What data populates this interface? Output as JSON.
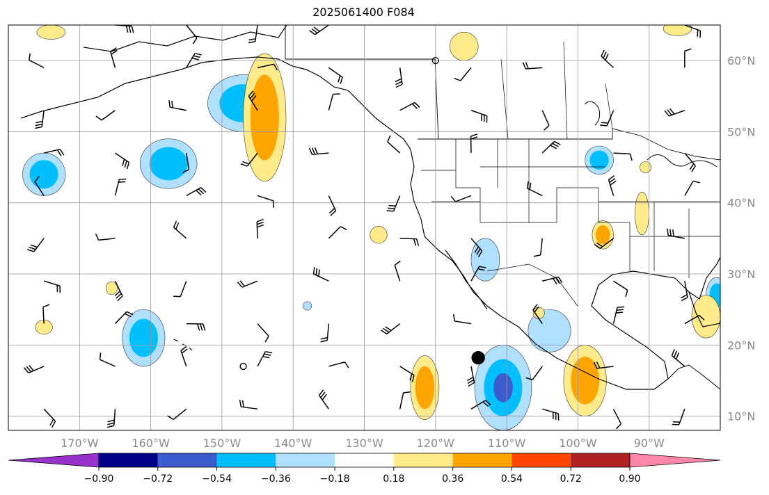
{
  "title": "2025061400 F084",
  "map": {
    "lon_range": [
      -180,
      -80
    ],
    "lat_range": [
      8,
      65
    ],
    "lon_ticks": [
      {
        "value": -170,
        "label": "170°W"
      },
      {
        "value": -160,
        "label": "160°W"
      },
      {
        "value": -150,
        "label": "150°W"
      },
      {
        "value": -140,
        "label": "140°W"
      },
      {
        "value": -130,
        "label": "130°W"
      },
      {
        "value": -120,
        "label": "120°W"
      },
      {
        "value": -110,
        "label": "110°W"
      },
      {
        "value": -100,
        "label": "100°W"
      },
      {
        "value": -90,
        "label": "90°W"
      }
    ],
    "lat_ticks": [
      {
        "value": 10,
        "label": "10°N"
      },
      {
        "value": 20,
        "label": "20°N"
      },
      {
        "value": 30,
        "label": "30°N"
      },
      {
        "value": 40,
        "label": "40°N"
      },
      {
        "value": 50,
        "label": "50°N"
      },
      {
        "value": 60,
        "label": "60°N"
      }
    ],
    "grid": true,
    "anomalies": [
      {
        "lon": -147,
        "lat": 54,
        "rx": 5,
        "ry": 4,
        "level": -0.45
      },
      {
        "lon": -157.5,
        "lat": 45.5,
        "rx": 4,
        "ry": 3.5,
        "level": -0.45
      },
      {
        "lon": -175,
        "lat": 44,
        "rx": 3,
        "ry": 3,
        "level": -0.45
      },
      {
        "lon": -161,
        "lat": 21,
        "rx": 3,
        "ry": 4,
        "level": -0.45
      },
      {
        "lon": -110.5,
        "lat": 14,
        "rx": 4,
        "ry": 6,
        "level": -0.6
      },
      {
        "lon": -104,
        "lat": 22,
        "rx": 3,
        "ry": 3,
        "level": -0.25
      },
      {
        "lon": -97,
        "lat": 46,
        "rx": 2,
        "ry": 2,
        "level": -0.4
      },
      {
        "lon": -80.5,
        "lat": 27,
        "rx": 1.5,
        "ry": 2.5,
        "level": -0.4
      },
      {
        "lon": -113,
        "lat": 32,
        "rx": 2,
        "ry": 3,
        "level": -0.25
      },
      {
        "lon": -138,
        "lat": 25.5,
        "rx": 0.6,
        "ry": 0.6,
        "level": -0.25
      },
      {
        "lon": -144,
        "lat": 52,
        "rx": 3,
        "ry": 9,
        "level": 0.45
      },
      {
        "lon": -121.5,
        "lat": 14,
        "rx": 2,
        "ry": 4.5,
        "level": 0.45
      },
      {
        "lon": -99,
        "lat": 15,
        "rx": 3,
        "ry": 5,
        "level": 0.45
      },
      {
        "lon": -96.5,
        "lat": 35.5,
        "rx": 1.5,
        "ry": 2,
        "level": 0.4
      },
      {
        "lon": -91,
        "lat": 38.5,
        "rx": 1,
        "ry": 3,
        "level": 0.25
      },
      {
        "lon": -128,
        "lat": 35.5,
        "rx": 1.2,
        "ry": 1.2,
        "level": 0.25
      },
      {
        "lon": -116,
        "lat": 62,
        "rx": 2,
        "ry": 2,
        "level": 0.25
      },
      {
        "lon": -82,
        "lat": 24,
        "rx": 2,
        "ry": 3,
        "level": 0.25
      },
      {
        "lon": -174,
        "lat": 64,
        "rx": 2,
        "ry": 1,
        "level": 0.25
      },
      {
        "lon": -175,
        "lat": 22.5,
        "rx": 1.2,
        "ry": 1,
        "level": 0.25
      },
      {
        "lon": -165.5,
        "lat": 28,
        "rx": 0.8,
        "ry": 0.9,
        "level": 0.25
      },
      {
        "lon": -105.5,
        "lat": 24.5,
        "rx": 0.8,
        "ry": 0.8,
        "level": 0.25
      },
      {
        "lon": -86,
        "lat": 64.5,
        "rx": 2,
        "ry": 1,
        "level": 0.25
      },
      {
        "lon": -90.5,
        "lat": 45,
        "rx": 0.8,
        "ry": 0.8,
        "level": 0.25
      }
    ],
    "station_markers": [
      {
        "lon": -114,
        "lat": 18.2,
        "kind": "filled"
      },
      {
        "lon": -147,
        "lat": 17,
        "kind": "open"
      },
      {
        "lon": -120,
        "lat": 60,
        "kind": "open"
      }
    ],
    "wind_barb_spacing_deg": [
      10,
      6
    ]
  },
  "colorbar": {
    "levels": [
      -0.9,
      -0.72,
      -0.54,
      -0.36,
      -0.18,
      0.18,
      0.36,
      0.54,
      0.72,
      0.9
    ],
    "labels": [
      "−0.90",
      "−0.72",
      "−0.54",
      "−0.36",
      "−0.18",
      "0.18",
      "0.36",
      "0.54",
      "0.72",
      "0.90"
    ],
    "colors": [
      "#9932cc",
      "#00008b",
      "#3a5ccc",
      "#00bfff",
      "#b0e0ff",
      "#ffffff",
      "#ffeb8a",
      "#ffa500",
      "#ff4500",
      "#b22222",
      "#ff88aa"
    ]
  }
}
